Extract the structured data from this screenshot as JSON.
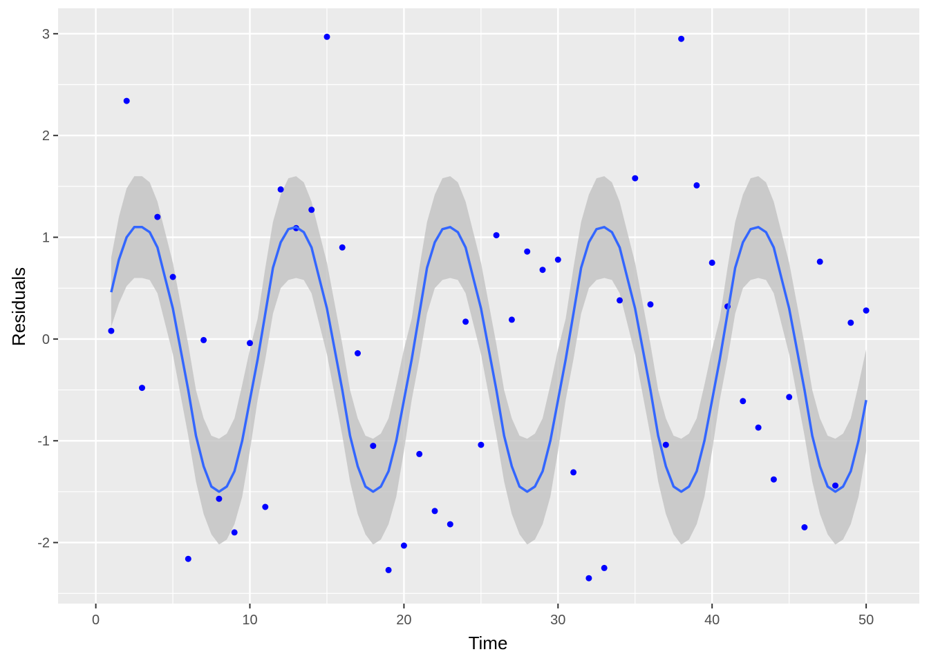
{
  "chart_data": {
    "type": "scatter",
    "xlabel": "Time",
    "ylabel": "Residuals",
    "xlim": [
      -2.45,
      53.45
    ],
    "ylim": [
      -2.6,
      3.25
    ],
    "x_ticks": [
      0,
      10,
      20,
      30,
      40,
      50
    ],
    "y_ticks": [
      -2,
      -1,
      0,
      1,
      2,
      3
    ],
    "x_tick_labels": [
      "0",
      "10",
      "20",
      "30",
      "40",
      "50"
    ],
    "y_tick_labels": [
      "-2",
      "-1",
      "0",
      "1",
      "2",
      "3"
    ],
    "grid": true,
    "legend": "none",
    "colors": {
      "panel": "#ebebeb",
      "grid_major": "#ffffff",
      "points": "#0000ff",
      "smooth_line": "#3366ff",
      "ribbon": "#bfbfbf"
    },
    "points": {
      "x": [
        1,
        2,
        3,
        4,
        5,
        6,
        7,
        8,
        9,
        10,
        11,
        12,
        13,
        14,
        15,
        16,
        17,
        18,
        19,
        20,
        21,
        22,
        23,
        24,
        25,
        26,
        27,
        28,
        29,
        30,
        31,
        32,
        33,
        34,
        35,
        36,
        37,
        38,
        39,
        40,
        41,
        42,
        43,
        44,
        45,
        46,
        47,
        48,
        49,
        50
      ],
      "y": [
        0.08,
        2.34,
        -0.48,
        1.2,
        0.61,
        -2.16,
        -0.01,
        -1.57,
        -1.9,
        -0.04,
        -1.65,
        1.47,
        1.09,
        1.27,
        2.97,
        0.9,
        -0.14,
        -1.05,
        -2.27,
        -2.03,
        -1.13,
        -1.69,
        -1.82,
        0.17,
        -1.04,
        1.02,
        0.19,
        0.86,
        0.68,
        0.78,
        -1.31,
        -2.35,
        -2.25,
        0.38,
        1.58,
        0.34,
        -1.04,
        2.95,
        1.51,
        0.75,
        0.32,
        -0.61,
        -0.87,
        -1.38,
        -0.57,
        -1.85,
        0.76,
        -1.44,
        0.16,
        0.28
      ]
    },
    "smooth": {
      "x": [
        1,
        1.5,
        2,
        2.5,
        3,
        3.5,
        4,
        4.5,
        5,
        5.5,
        6,
        6.5,
        7,
        7.5,
        8,
        8.5,
        9,
        9.5,
        10,
        10.5,
        11,
        11.5,
        12,
        12.5,
        13,
        13.5,
        14,
        14.5,
        15,
        15.5,
        16,
        16.5,
        17,
        17.5,
        18,
        18.5,
        19,
        19.5,
        20,
        20.5,
        21,
        21.5,
        22,
        22.5,
        23,
        23.5,
        24,
        24.5,
        25,
        25.5,
        26,
        26.5,
        27,
        27.5,
        28,
        28.5,
        29,
        29.5,
        30,
        30.5,
        31,
        31.5,
        32,
        32.5,
        33,
        33.5,
        34,
        34.5,
        35,
        35.5,
        36,
        36.5,
        37,
        37.5,
        38,
        38.5,
        39,
        39.5,
        40,
        40.5,
        41,
        41.5,
        42,
        42.5,
        43,
        43.5,
        44,
        44.5,
        45,
        45.5,
        46,
        46.5,
        47,
        47.5,
        48,
        48.5,
        49,
        49.5,
        50
      ],
      "y": [
        0.46,
        0.78,
        1.0,
        1.1,
        1.1,
        1.05,
        0.9,
        0.6,
        0.3,
        -0.1,
        -0.5,
        -0.95,
        -1.25,
        -1.45,
        -1.5,
        -1.45,
        -1.3,
        -1.0,
        -0.6,
        -0.2,
        0.25,
        0.7,
        0.95,
        1.08,
        1.1,
        1.05,
        0.9,
        0.6,
        0.3,
        -0.1,
        -0.5,
        -0.95,
        -1.25,
        -1.45,
        -1.5,
        -1.45,
        -1.3,
        -1.0,
        -0.6,
        -0.2,
        0.25,
        0.7,
        0.95,
        1.08,
        1.1,
        1.05,
        0.9,
        0.6,
        0.3,
        -0.1,
        -0.5,
        -0.95,
        -1.25,
        -1.45,
        -1.5,
        -1.45,
        -1.3,
        -1.0,
        -0.6,
        -0.2,
        0.25,
        0.7,
        0.95,
        1.08,
        1.1,
        1.05,
        0.9,
        0.6,
        0.3,
        -0.1,
        -0.5,
        -0.95,
        -1.25,
        -1.45,
        -1.5,
        -1.45,
        -1.3,
        -1.0,
        -0.6,
        -0.2,
        0.25,
        0.7,
        0.95,
        1.08,
        1.1,
        1.05,
        0.9,
        0.6,
        0.3,
        -0.1,
        -0.5,
        -0.95,
        -1.25,
        -1.45,
        -1.5,
        -1.45,
        -1.3,
        -1.0,
        -0.6
      ],
      "ymin": [
        0.12,
        0.35,
        0.52,
        0.6,
        0.6,
        0.58,
        0.45,
        0.15,
        -0.15,
        -0.55,
        -0.95,
        -1.4,
        -1.72,
        -1.92,
        -2.02,
        -1.97,
        -1.82,
        -1.55,
        -1.1,
        -0.6,
        -0.2,
        0.25,
        0.5,
        0.58,
        0.6,
        0.58,
        0.45,
        0.15,
        -0.15,
        -0.55,
        -0.95,
        -1.4,
        -1.72,
        -1.92,
        -2.02,
        -1.97,
        -1.82,
        -1.55,
        -1.1,
        -0.6,
        -0.2,
        0.25,
        0.5,
        0.58,
        0.6,
        0.58,
        0.45,
        0.15,
        -0.15,
        -0.55,
        -0.95,
        -1.4,
        -1.72,
        -1.92,
        -2.02,
        -1.97,
        -1.82,
        -1.55,
        -1.1,
        -0.6,
        -0.2,
        0.25,
        0.5,
        0.58,
        0.6,
        0.58,
        0.45,
        0.15,
        -0.15,
        -0.55,
        -0.95,
        -1.4,
        -1.72,
        -1.92,
        -2.02,
        -1.97,
        -1.82,
        -1.55,
        -1.1,
        -0.6,
        -0.2,
        0.25,
        0.5,
        0.58,
        0.6,
        0.58,
        0.45,
        0.15,
        -0.15,
        -0.55,
        -0.95,
        -1.4,
        -1.72,
        -1.92,
        -2.02,
        -1.97,
        -1.82,
        -1.55,
        -1.1
      ],
      "ymax": [
        0.8,
        1.2,
        1.48,
        1.6,
        1.6,
        1.54,
        1.35,
        1.05,
        0.75,
        0.35,
        -0.05,
        -0.5,
        -0.78,
        -0.95,
        -0.98,
        -0.93,
        -0.78,
        -0.45,
        -0.1,
        0.2,
        0.7,
        1.15,
        1.42,
        1.58,
        1.6,
        1.54,
        1.35,
        1.05,
        0.75,
        0.35,
        -0.05,
        -0.5,
        -0.78,
        -0.95,
        -0.98,
        -0.93,
        -0.78,
        -0.45,
        -0.1,
        0.2,
        0.7,
        1.15,
        1.42,
        1.58,
        1.6,
        1.54,
        1.35,
        1.05,
        0.75,
        0.35,
        -0.05,
        -0.5,
        -0.78,
        -0.95,
        -0.98,
        -0.93,
        -0.78,
        -0.45,
        -0.1,
        0.2,
        0.7,
        1.15,
        1.42,
        1.58,
        1.6,
        1.54,
        1.35,
        1.05,
        0.75,
        0.35,
        -0.05,
        -0.5,
        -0.78,
        -0.95,
        -0.98,
        -0.93,
        -0.78,
        -0.45,
        -0.1,
        0.2,
        0.7,
        1.15,
        1.42,
        1.58,
        1.6,
        1.54,
        1.35,
        1.05,
        0.75,
        0.35,
        -0.05,
        -0.5,
        -0.78,
        -0.95,
        -0.98,
        -0.93,
        -0.78,
        -0.45,
        -0.1
      ]
    }
  }
}
